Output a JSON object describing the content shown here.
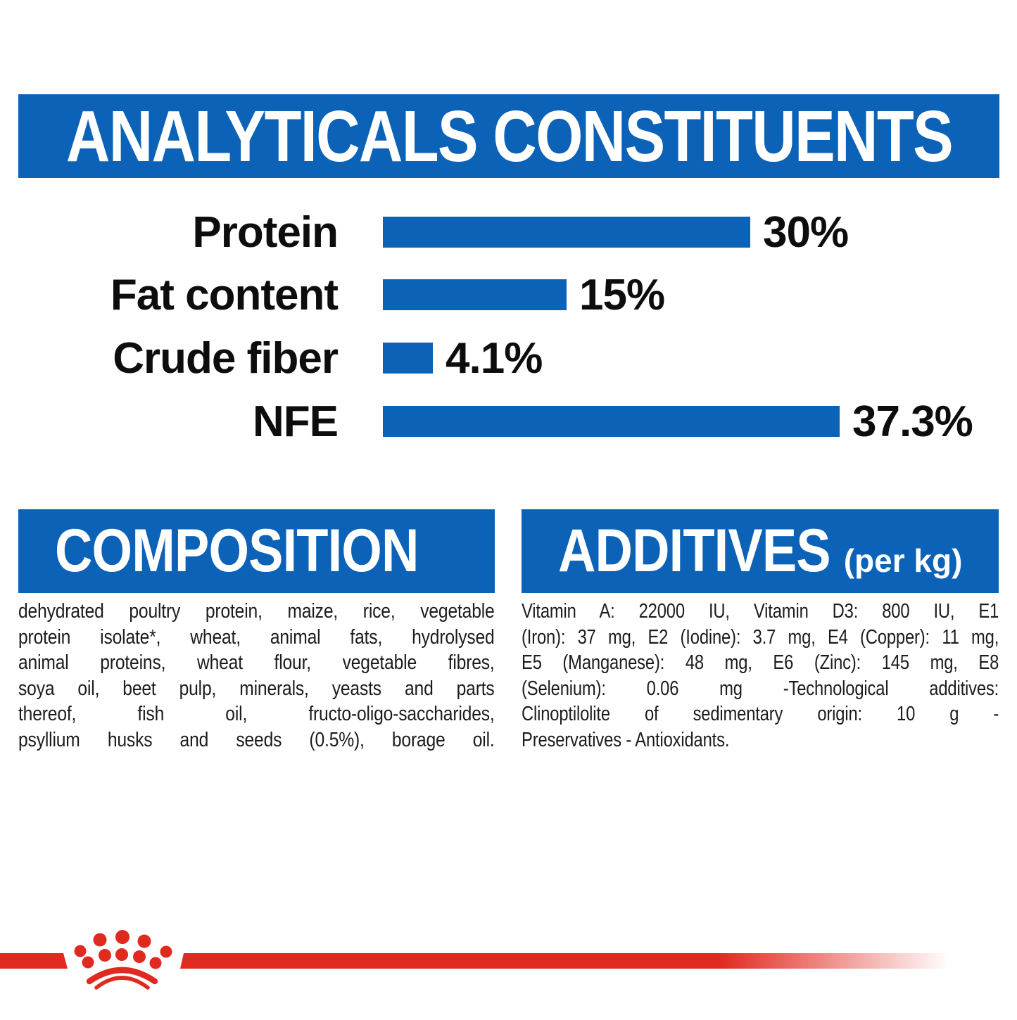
{
  "header": {
    "title": "ANALYTICALS CONSTITUENTS"
  },
  "chart_data": {
    "type": "bar",
    "orientation": "horizontal",
    "title": "ANALYTICALS CONSTITUENTS",
    "categories": [
      "Protein",
      "Fat content",
      "Crude fiber",
      "NFE"
    ],
    "values": [
      30,
      15,
      4.1,
      37.3
    ],
    "value_labels": [
      "30%",
      "15%",
      "4.1%",
      "37.3%"
    ],
    "unit": "%",
    "xlim": [
      0,
      40
    ],
    "bar_color": "#0b62b6",
    "grid": false,
    "legend": false
  },
  "composition": {
    "title": "COMPOSITION",
    "lines": [
      "dehydrated poultry protein, maize, rice, vegetable",
      "protein isolate*, wheat, animal fats, hydrolysed",
      "animal proteins, wheat flour, vegetable fibres,",
      "soya oil, beet pulp, minerals, yeasts and parts",
      "thereof, fish oil, fructo-oligo-saccharides,",
      "psyllium husks and seeds (0.5%), borage oil."
    ]
  },
  "additives": {
    "title": "ADDITIVES",
    "subtitle": "(per kg)",
    "lines": [
      "Vitamin A: 22000 IU, Vitamin D3: 800 IU, E1",
      "(Iron): 37 mg, E2 (Iodine): 3.7 mg, E4 (Copper): 11 mg,",
      "E5 (Manganese): 48 mg, E6 (Zinc): 145 mg, E8",
      "(Selenium): 0.06 mg -Technological additives:",
      "Clinoptilolite of sedimentary origin: 10 g -",
      "Preservatives - Antioxidants."
    ]
  },
  "brand": {
    "logo": "royal-canin-crown",
    "accent_blue": "#0b62b6",
    "accent_red": "#e02a20"
  }
}
